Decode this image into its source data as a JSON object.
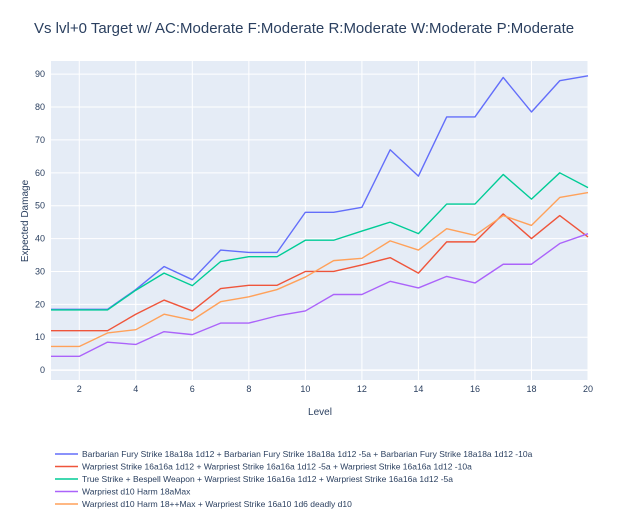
{
  "chart_data": {
    "type": "line",
    "title": "Vs lvl+0 Target w/ AC:Moderate F:Moderate R:Moderate W:Moderate P:Moderate",
    "xlabel": "Level",
    "ylabel": "Expected Damage",
    "xlim": [
      1,
      20
    ],
    "ylim": [
      -3,
      94
    ],
    "x_ticks": [
      2,
      4,
      6,
      8,
      10,
      12,
      14,
      16,
      18,
      20
    ],
    "y_ticks": [
      0,
      10,
      20,
      30,
      40,
      50,
      60,
      70,
      80,
      90
    ],
    "grid": true,
    "legend_position": "bottom",
    "x": [
      1,
      2,
      3,
      4,
      5,
      6,
      7,
      8,
      9,
      10,
      11,
      12,
      13,
      14,
      15,
      16,
      17,
      18,
      19,
      20
    ],
    "series": [
      {
        "name": "Barbarian Fury Strike 18a18a 1d12 + Barbarian Fury Strike 18a18a 1d12 -5a + Barbarian Fury Strike 18a18a 1d12 -10a",
        "color": "#636efa",
        "values": [
          18.5,
          18.5,
          18.5,
          24.5,
          31.5,
          27.5,
          36.5,
          35.8,
          35.8,
          48,
          48,
          49.5,
          67,
          59,
          77,
          77,
          89,
          78.5,
          88,
          89.5
        ]
      },
      {
        "name": "Warpriest Strike 16a16a 1d12 + Warpriest Strike 16a16a 1d12 -5a + Warpriest Strike 16a16a 1d12 -10a",
        "color": "#ef553b",
        "values": [
          12,
          12,
          12,
          17,
          21.3,
          18,
          24.8,
          25.8,
          25.8,
          30,
          30,
          32,
          34.2,
          29.5,
          39,
          39,
          47.5,
          40,
          47,
          40.5
        ]
      },
      {
        "name": "True Strike + Bespell Weapon + Warpriest Strike 16a16a 1d12 + Warpriest Strike 16a16a 1d12 -5a",
        "color": "#00cc96",
        "values": [
          18.3,
          18.3,
          18.3,
          24.3,
          29.5,
          25.7,
          33,
          34.5,
          34.5,
          39.5,
          39.5,
          42.3,
          45,
          41.5,
          50.5,
          50.5,
          59.5,
          52,
          60,
          55.5
        ]
      },
      {
        "name": "Warpriest d10 Harm 18aMax",
        "color": "#ab63fa",
        "values": [
          4.2,
          4.2,
          8.5,
          7.8,
          11.7,
          10.8,
          14.3,
          14.3,
          16.5,
          18,
          23,
          23,
          27,
          25,
          28.5,
          26.5,
          32.2,
          32.2,
          38.5,
          41.5
        ]
      },
      {
        "name": "Warpriest d10 Harm 18++Max + Warpriest Strike 16a10 1d6 deadly d10",
        "color": "#ffa15a",
        "values": [
          7.2,
          7.2,
          11.3,
          12.3,
          17,
          15.2,
          20.8,
          22.3,
          24.5,
          28.3,
          33.3,
          34,
          39.3,
          36.5,
          43,
          41,
          47,
          44,
          52.5,
          54
        ]
      }
    ]
  }
}
